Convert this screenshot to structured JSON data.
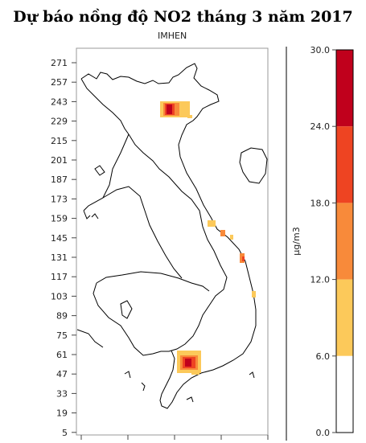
{
  "title": "Dự báo nồng độ NO2 tháng 3 năm 2017",
  "subtitle": "IMHEN",
  "y_axis": {
    "ticks": [
      "271",
      "257",
      "243",
      "229",
      "215",
      "201",
      "187",
      "173",
      "159",
      "145",
      "131",
      "117",
      "103",
      "89",
      "75",
      "61",
      "47",
      "33",
      "19",
      "5"
    ]
  },
  "legend": {
    "unit": "μg/m3",
    "labels": [
      "30.0",
      "24.0",
      "18.0",
      "12.0",
      "6.0",
      "0.0"
    ],
    "bins": [
      {
        "range": "24.0-30.0",
        "color": "#c0001c"
      },
      {
        "range": "18.0-24.0",
        "color": "#ee4422"
      },
      {
        "range": "12.0-18.0",
        "color": "#f88a3a"
      },
      {
        "range": "6.0-12.0",
        "color": "#fcc95a"
      },
      {
        "range": "0.0-6.0",
        "color": "#ffffff"
      }
    ]
  },
  "colors": {
    "red": "#c0001c",
    "orange_red": "#ee4422",
    "orange": "#f88a3a",
    "yellow": "#fcc95a"
  }
}
